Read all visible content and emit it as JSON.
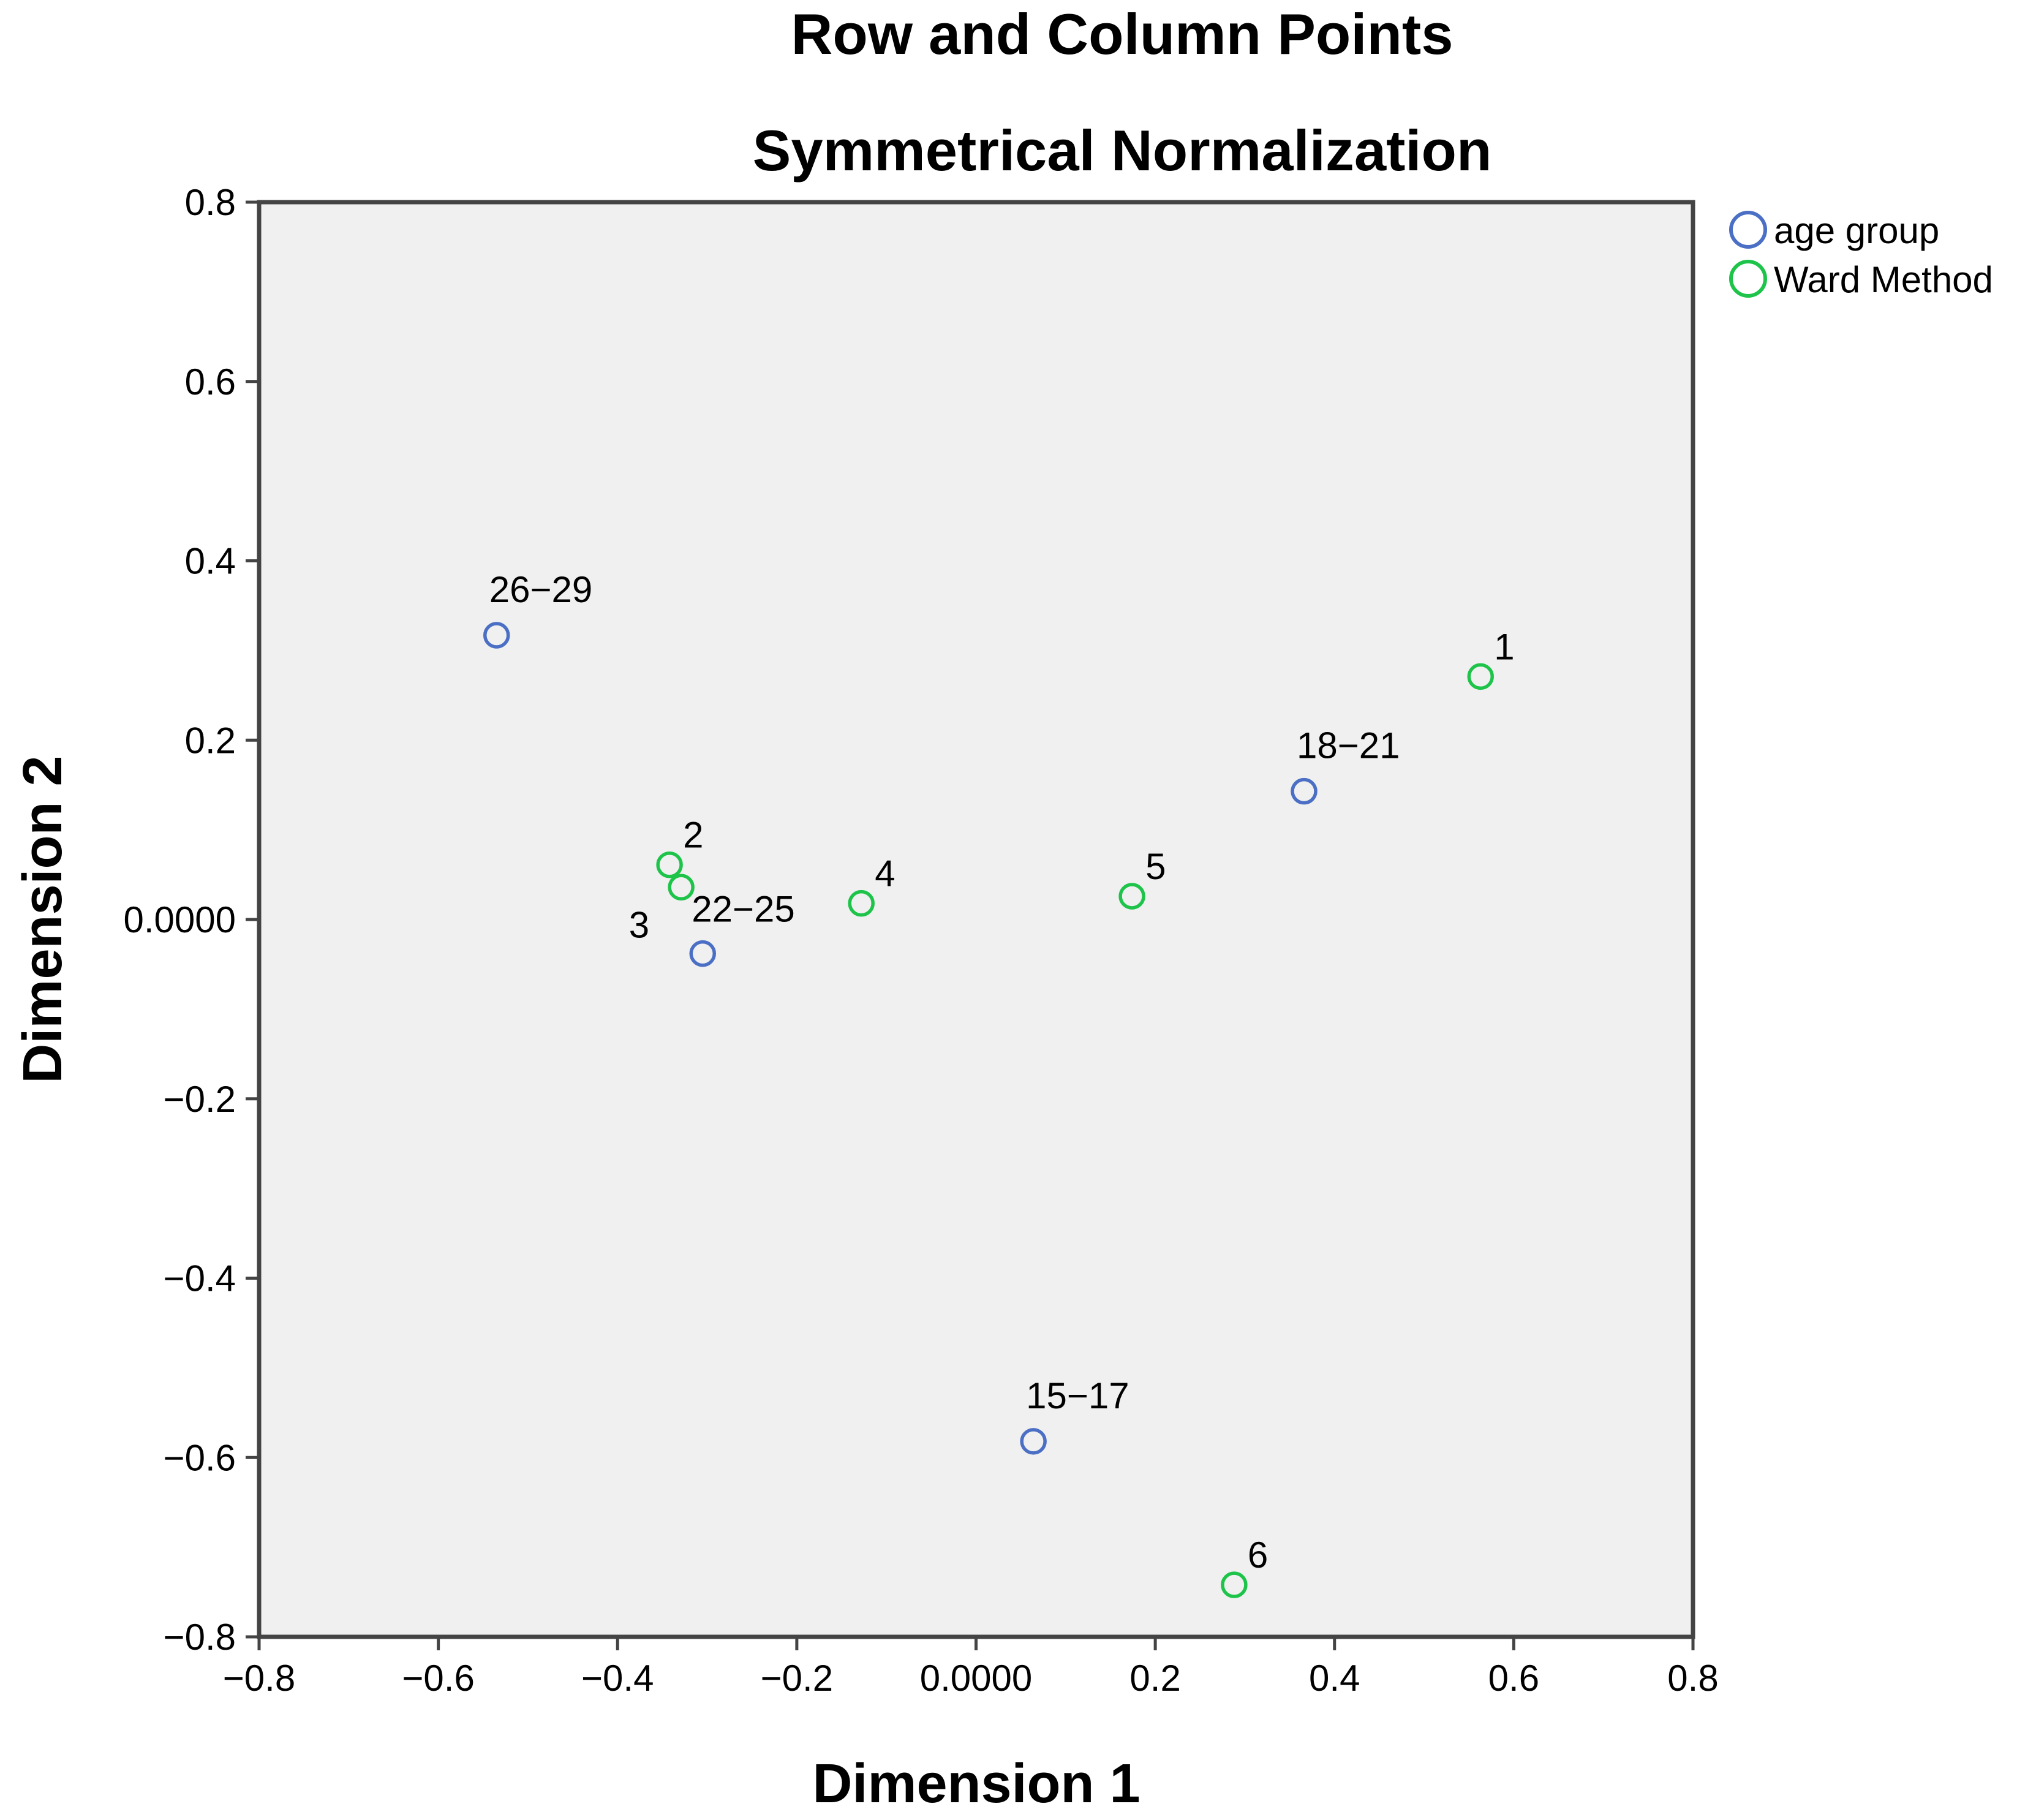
{
  "chart_data": {
    "type": "scatter",
    "title": "Row and Column Points",
    "subtitle": "Symmetrical Normalization",
    "xlabel": "Dimension 1",
    "ylabel": "Dimension 2",
    "xlim": [
      -0.8,
      0.8
    ],
    "ylim": [
      -0.8,
      0.8
    ],
    "xticks": [
      {
        "v": -0.8,
        "label": "−0.8"
      },
      {
        "v": -0.6,
        "label": "−0.6"
      },
      {
        "v": -0.4,
        "label": "−0.4"
      },
      {
        "v": -0.2,
        "label": "−0.2"
      },
      {
        "v": 0.0,
        "label": "0.0000"
      },
      {
        "v": 0.2,
        "label": "0.2"
      },
      {
        "v": 0.4,
        "label": "0.4"
      },
      {
        "v": 0.6,
        "label": "0.6"
      },
      {
        "v": 0.8,
        "label": "0.8"
      }
    ],
    "yticks": [
      {
        "v": 0.8,
        "label": "0.8"
      },
      {
        "v": 0.6,
        "label": "0.6"
      },
      {
        "v": 0.4,
        "label": "0.4"
      },
      {
        "v": 0.2,
        "label": "0.2"
      },
      {
        "v": 0.0,
        "label": "0.0000"
      },
      {
        "v": -0.2,
        "label": "−0.2"
      },
      {
        "v": -0.4,
        "label": "−0.4"
      },
      {
        "v": -0.6,
        "label": "−0.6"
      },
      {
        "v": -0.8,
        "label": "−0.8"
      }
    ],
    "legend_position": "top-right",
    "series": [
      {
        "name": "age group",
        "color": "#4a6fc4",
        "points": [
          {
            "label": "26−29",
            "x": -0.535,
            "y": 0.317,
            "label_pos": "above"
          },
          {
            "label": "18−21",
            "x": 0.366,
            "y": 0.143,
            "label_pos": "above"
          },
          {
            "label": "22−25",
            "x": -0.305,
            "y": -0.038,
            "label_pos": "above-right"
          },
          {
            "label": "15−17",
            "x": 0.064,
            "y": -0.582,
            "label_pos": "above"
          }
        ]
      },
      {
        "name": "Ward Method",
        "color": "#1ec44a",
        "points": [
          {
            "label": "1",
            "x": 0.563,
            "y": 0.271,
            "label_pos": "upper-right"
          },
          {
            "label": "2",
            "x": -0.342,
            "y": 0.061,
            "label_pos": "upper-right"
          },
          {
            "label": "3",
            "x": -0.329,
            "y": 0.036,
            "label_pos": "lower-left"
          },
          {
            "label": "4",
            "x": -0.128,
            "y": 0.018,
            "label_pos": "upper-right"
          },
          {
            "label": "5",
            "x": 0.174,
            "y": 0.026,
            "label_pos": "upper-right"
          },
          {
            "label": "6",
            "x": 0.288,
            "y": -0.742,
            "label_pos": "upper-right"
          }
        ]
      }
    ]
  }
}
